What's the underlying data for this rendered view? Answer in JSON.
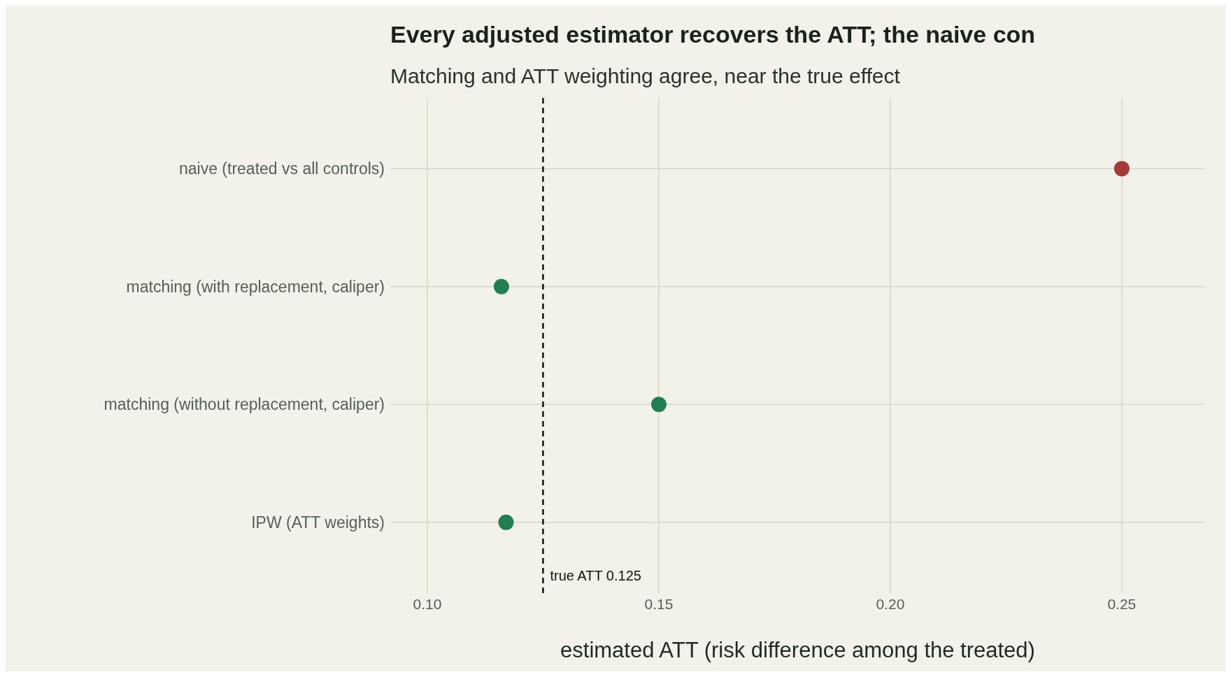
{
  "chart_data": {
    "type": "scatter",
    "orientation": "horizontal",
    "title": "Every adjusted estimator recovers the ATT; the naive con",
    "subtitle": "Matching and ATT weighting agree, near the true effect",
    "xlabel": "estimated ATT (risk difference among the treated)",
    "categories": [
      "naive (treated vs all controls)",
      "matching (with replacement, caliper)",
      "matching (without replacement, caliper)",
      "IPW (ATT weights)"
    ],
    "values": [
      0.25,
      0.116,
      0.15,
      0.117
    ],
    "colors": [
      "#a33a3a",
      "#237e4f",
      "#237e4f",
      "#237e4f"
    ],
    "xlim": [
      0.092,
      0.268
    ],
    "xticks": [
      {
        "value": 0.1,
        "label": "0.10"
      },
      {
        "value": 0.15,
        "label": "0.15"
      },
      {
        "value": 0.2,
        "label": "0.20"
      },
      {
        "value": 0.25,
        "label": "0.25"
      }
    ],
    "ref_lines": [
      {
        "axis": "x",
        "value": 0.125,
        "label": "true ATT 0.125",
        "color": "#111111",
        "line_style": "dashed"
      }
    ],
    "grid": true,
    "legend": false,
    "marker": "circle"
  }
}
